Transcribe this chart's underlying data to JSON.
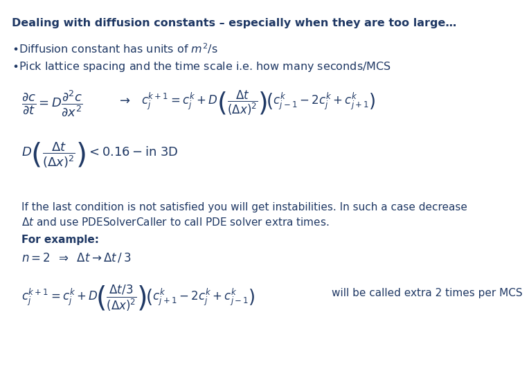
{
  "title": "Dealing with diffusion constants – especially when they are too large…",
  "title_color": "#1F3864",
  "title_bold": true,
  "title_fontsize": 11.5,
  "bg_color": "#FFFFFF",
  "text_color": "#1F3864",
  "instability_text1": "If the last condition is not satisfied you will get instabilities. In such a case decrease",
  "instability_text2": "and use PDESolverCaller to call PDE solver extra times.",
  "forexample": "For example:",
  "eq4b": "will be called extra 2 times per MCS",
  "fontsize_bullet": 11.5,
  "fontsize_eq": 11.0,
  "fontsize_instability": 11.0,
  "fontsize_forexample": 11.0
}
